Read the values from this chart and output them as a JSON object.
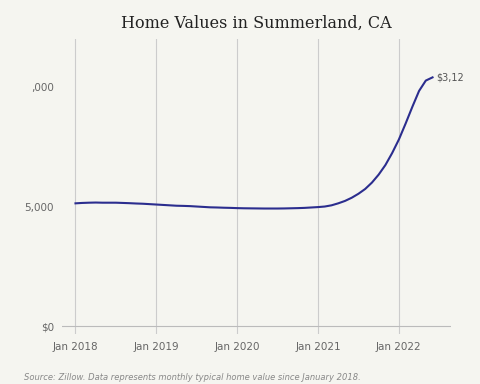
{
  "title": "Home Values in Summerland, CA",
  "source_text": "Source: Zillow. Data represents monthly typical home value since January 2018.",
  "line_color": "#2b2d8e",
  "background_color": "#f5f5f0",
  "annotation_text": "$3,12",
  "ylim": [
    -100000,
    3600000
  ],
  "xlim_start": 2017.83,
  "xlim_end": 2022.65,
  "x_tick_positions": [
    2018,
    2019,
    2020,
    2021,
    2022
  ],
  "x_tick_labels": [
    "Jan 2018",
    "Jan 2019",
    "Jan 2020",
    "Jan 2021",
    "Jan 2022"
  ],
  "ytick_positions": [
    0,
    1500000,
    3000000
  ],
  "months": [
    0,
    1,
    2,
    3,
    4,
    5,
    6,
    7,
    8,
    9,
    10,
    11,
    12,
    13,
    14,
    15,
    16,
    17,
    18,
    19,
    20,
    21,
    22,
    23,
    24,
    25,
    26,
    27,
    28,
    29,
    30,
    31,
    32,
    33,
    34,
    35,
    36,
    37,
    38,
    39,
    40,
    41,
    42,
    43,
    44,
    45,
    46,
    47,
    48,
    49,
    50,
    51,
    52,
    53
  ],
  "values": [
    1540000,
    1545000,
    1548000,
    1550000,
    1548000,
    1548000,
    1548000,
    1545000,
    1542000,
    1538000,
    1535000,
    1530000,
    1525000,
    1520000,
    1515000,
    1510000,
    1508000,
    1505000,
    1500000,
    1495000,
    1490000,
    1488000,
    1485000,
    1483000,
    1480000,
    1478000,
    1477000,
    1476000,
    1475000,
    1475000,
    1475000,
    1476000,
    1478000,
    1480000,
    1483000,
    1488000,
    1493000,
    1500000,
    1515000,
    1540000,
    1570000,
    1610000,
    1660000,
    1720000,
    1800000,
    1900000,
    2020000,
    2170000,
    2340000,
    2540000,
    2750000,
    2950000,
    3080000,
    3120000
  ]
}
